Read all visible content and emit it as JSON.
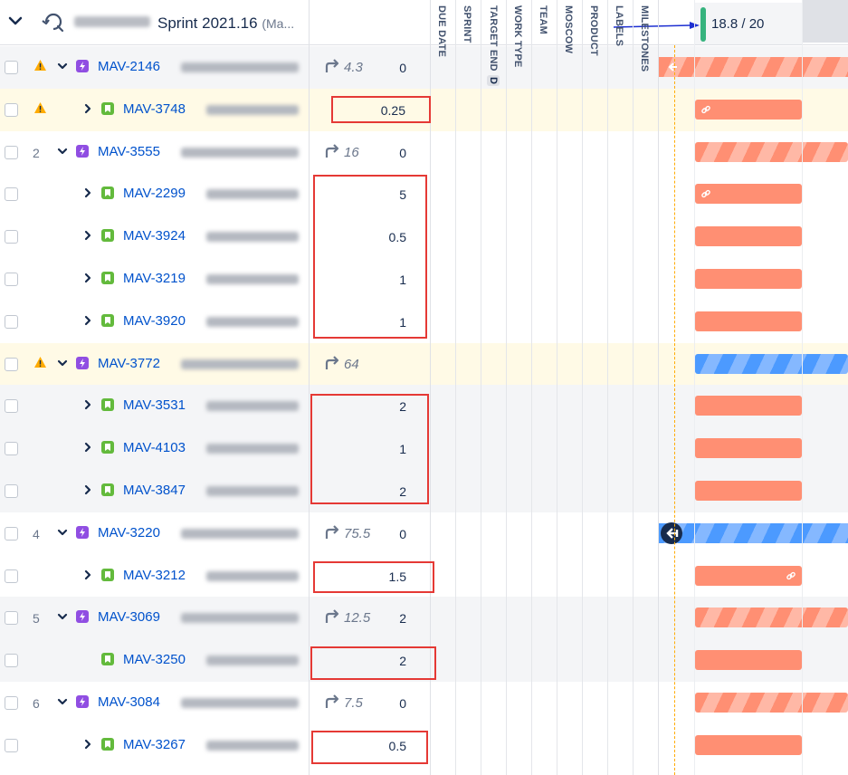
{
  "header": {
    "sprint_title": "Sprint 2021.16",
    "sprint_suffix": "(Ma...",
    "capacity": "18.8 / 20",
    "capacity_color": "#36b37e"
  },
  "columns": [
    "DUE DATE",
    "SPRINT",
    "TARGET END",
    "WORK TYPE",
    "TEAM",
    "MOSCOW",
    "PRODUCT",
    "LABELS",
    "MILESTONES"
  ],
  "target_end_badge": "D",
  "colors": {
    "epic": "#904ee2",
    "story": "#63ba3c",
    "bar_orange": "#ff8f73",
    "bar_blue": "#4c9aff",
    "highlight": "#e53935",
    "link": "#0052cc"
  },
  "rows": [
    {
      "rank": "",
      "warning": true,
      "key": "MAV-2146",
      "type": "epic",
      "rollup": "4.3",
      "estimate": "0"
    },
    {
      "rank": "",
      "warning": true,
      "key": "MAV-3748",
      "type": "story",
      "rollup": "",
      "estimate": "0.25"
    },
    {
      "rank": "2",
      "warning": false,
      "key": "MAV-3555",
      "type": "epic",
      "rollup": "16",
      "estimate": "0"
    },
    {
      "rank": "",
      "warning": false,
      "key": "MAV-2299",
      "type": "story",
      "rollup": "",
      "estimate": "5"
    },
    {
      "rank": "",
      "warning": false,
      "key": "MAV-3924",
      "type": "story",
      "rollup": "",
      "estimate": "0.5"
    },
    {
      "rank": "",
      "warning": false,
      "key": "MAV-3219",
      "type": "story",
      "rollup": "",
      "estimate": "1"
    },
    {
      "rank": "",
      "warning": false,
      "key": "MAV-3920",
      "type": "story",
      "rollup": "",
      "estimate": "1"
    },
    {
      "rank": "",
      "warning": true,
      "key": "MAV-3772",
      "type": "epic",
      "rollup": "64",
      "estimate": ""
    },
    {
      "rank": "",
      "warning": false,
      "key": "MAV-3531",
      "type": "story",
      "rollup": "",
      "estimate": "2"
    },
    {
      "rank": "",
      "warning": false,
      "key": "MAV-4103",
      "type": "story",
      "rollup": "",
      "estimate": "1"
    },
    {
      "rank": "",
      "warning": false,
      "key": "MAV-3847",
      "type": "story",
      "rollup": "",
      "estimate": "2"
    },
    {
      "rank": "4",
      "warning": false,
      "key": "MAV-3220",
      "type": "epic",
      "rollup": "75.5",
      "estimate": "0"
    },
    {
      "rank": "",
      "warning": false,
      "key": "MAV-3212",
      "type": "story",
      "rollup": "",
      "estimate": "1.5"
    },
    {
      "rank": "5",
      "warning": false,
      "key": "MAV-3069",
      "type": "epic",
      "rollup": "12.5",
      "estimate": "2"
    },
    {
      "rank": "",
      "warning": false,
      "key": "MAV-3250",
      "type": "story",
      "rollup": "",
      "estimate": "2"
    },
    {
      "rank": "6",
      "warning": false,
      "key": "MAV-3084",
      "type": "epic",
      "rollup": "7.5",
      "estimate": "0"
    },
    {
      "rank": "",
      "warning": false,
      "key": "MAV-3267",
      "type": "story",
      "rollup": "",
      "estimate": "0.5"
    }
  ]
}
